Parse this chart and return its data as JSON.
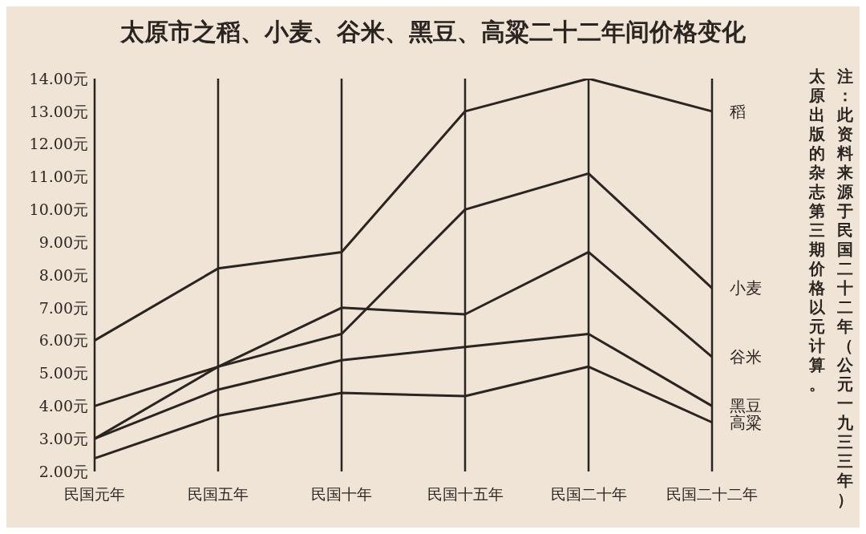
{
  "chart_data": {
    "type": "line",
    "title": "太原市之稻、小麦、谷米、黑豆、高粱二十二年间价格变化",
    "categories": [
      "民国元年",
      "民国五年",
      "民国十年",
      "民国十五年",
      "民国二十年",
      "民国二十二年"
    ],
    "series": [
      {
        "name": "稻",
        "color": "#2b2521",
        "values": [
          6.0,
          8.2,
          8.7,
          13.0,
          14.0,
          13.0
        ]
      },
      {
        "name": "小麦",
        "color": "#2b2521",
        "values": [
          4.0,
          5.2,
          6.2,
          10.0,
          11.1,
          7.6
        ]
      },
      {
        "name": "谷米",
        "color": "#2b2521",
        "values": [
          3.0,
          5.2,
          7.0,
          6.8,
          8.7,
          5.5
        ]
      },
      {
        "name": "黑豆",
        "color": "#2b2521",
        "values": [
          3.0,
          4.5,
          5.4,
          5.8,
          6.2,
          4.0
        ]
      },
      {
        "name": "高粱",
        "color": "#2b2521",
        "values": [
          2.4,
          3.7,
          4.4,
          4.3,
          5.2,
          3.5
        ]
      }
    ],
    "ylim": [
      2,
      14
    ],
    "yticks": [
      {
        "value": 2,
        "label": "2.00元"
      },
      {
        "value": 3,
        "label": "3.00元"
      },
      {
        "value": 4,
        "label": "4.00元"
      },
      {
        "value": 5,
        "label": "5.00元"
      },
      {
        "value": 6,
        "label": "6.00元"
      },
      {
        "value": 7,
        "label": "7.00元"
      },
      {
        "value": 8,
        "label": "8.00元"
      },
      {
        "value": 9,
        "label": "9.00元"
      },
      {
        "value": 10,
        "label": "10.00元"
      },
      {
        "value": 11,
        "label": "11.00元"
      },
      {
        "value": 12,
        "label": "12.00元"
      },
      {
        "value": 13,
        "label": "13.00元"
      },
      {
        "value": 14,
        "label": "14.00元"
      }
    ],
    "grid": "x",
    "marker": "none",
    "line_style": "solid",
    "annotations": [
      "注：此资料来源于民国二十二年（公元一九三三年）太原出版的杂志第三期价格以元计算。"
    ]
  }
}
